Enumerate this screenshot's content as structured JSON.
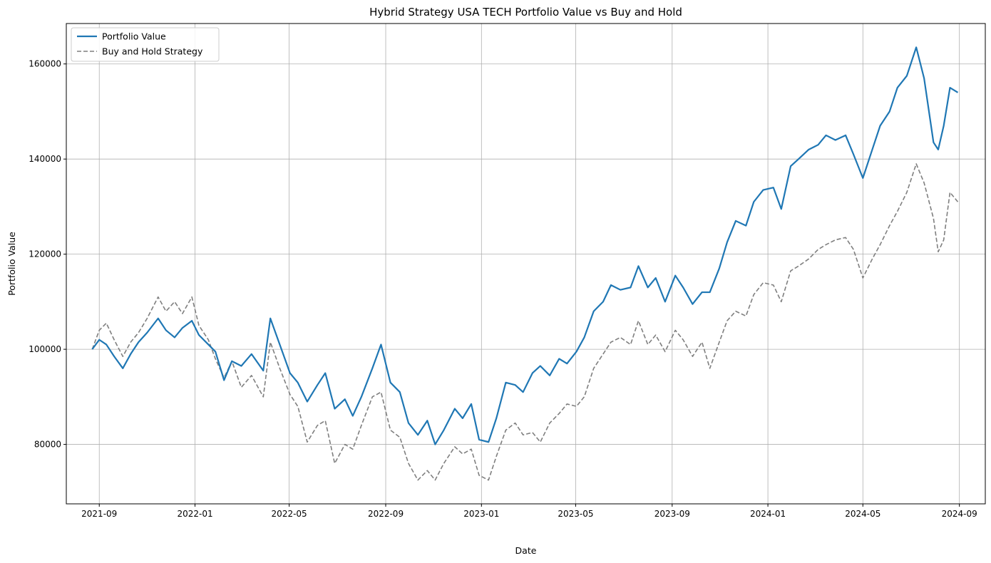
{
  "chart_data": {
    "type": "line",
    "title": "Hybrid Strategy USA TECH Portfolio Value vs Buy and Hold",
    "xlabel": "Date",
    "ylabel": "Portfolio Value",
    "x_ticks": [
      "2021-09",
      "2022-01",
      "2022-05",
      "2022-09",
      "2023-01",
      "2023-05",
      "2023-09",
      "2024-01",
      "2024-05",
      "2024-09"
    ],
    "y_ticks": [
      80000,
      100000,
      120000,
      140000,
      160000
    ],
    "xlim": [
      "2021-07-21",
      "2024-10-04"
    ],
    "ylim": [
      67500,
      168500
    ],
    "grid": true,
    "legend_position": "top-left",
    "x": [
      "2021-08-23",
      "2021-09-01",
      "2021-09-10",
      "2021-09-20",
      "2021-10-01",
      "2021-10-11",
      "2021-10-21",
      "2021-11-01",
      "2021-11-15",
      "2021-11-25",
      "2021-12-06",
      "2021-12-16",
      "2021-12-28",
      "2022-01-06",
      "2022-01-18",
      "2022-01-27",
      "2022-02-07",
      "2022-02-17",
      "2022-03-01",
      "2022-03-14",
      "2022-03-29",
      "2022-04-07",
      "2022-04-19",
      "2022-05-02",
      "2022-05-12",
      "2022-05-24",
      "2022-06-06",
      "2022-06-16",
      "2022-06-28",
      "2022-07-11",
      "2022-07-21",
      "2022-08-01",
      "2022-08-15",
      "2022-08-26",
      "2022-09-07",
      "2022-09-19",
      "2022-09-30",
      "2022-10-12",
      "2022-10-24",
      "2022-11-03",
      "2022-11-14",
      "2022-11-28",
      "2022-12-08",
      "2022-12-19",
      "2022-12-29",
      "2023-01-10",
      "2023-01-20",
      "2023-02-01",
      "2023-02-13",
      "2023-02-23",
      "2023-03-07",
      "2023-03-17",
      "2023-03-29",
      "2023-04-10",
      "2023-04-20",
      "2023-05-02",
      "2023-05-12",
      "2023-05-24",
      "2023-06-05",
      "2023-06-15",
      "2023-06-27",
      "2023-07-10",
      "2023-07-20",
      "2023-08-01",
      "2023-08-11",
      "2023-08-23",
      "2023-09-05",
      "2023-09-15",
      "2023-09-27",
      "2023-10-09",
      "2023-10-19",
      "2023-10-31",
      "2023-11-10",
      "2023-11-21",
      "2023-12-04",
      "2023-12-14",
      "2023-12-26",
      "2024-01-08",
      "2024-01-18",
      "2024-01-30",
      "2024-02-09",
      "2024-02-22",
      "2024-03-05",
      "2024-03-15",
      "2024-03-27",
      "2024-04-09",
      "2024-04-19",
      "2024-05-01",
      "2024-05-13",
      "2024-05-23",
      "2024-06-04",
      "2024-06-14",
      "2024-06-26",
      "2024-07-08",
      "2024-07-18",
      "2024-07-30",
      "2024-08-05",
      "2024-08-12",
      "2024-08-20",
      "2024-08-30"
    ],
    "series": [
      {
        "name": "Portfolio Value",
        "color": "#1f77b4",
        "style": "solid",
        "values": [
          100000,
          102000,
          101000,
          98500,
          96000,
          99000,
          101500,
          103500,
          106500,
          104000,
          102500,
          104500,
          106000,
          103000,
          101000,
          99500,
          93500,
          97500,
          96500,
          99000,
          95500,
          106500,
          101000,
          95000,
          93000,
          89000,
          92500,
          95000,
          87500,
          89500,
          86000,
          90000,
          96000,
          101000,
          93000,
          91000,
          84500,
          82000,
          85000,
          80000,
          83000,
          87500,
          85500,
          88500,
          81000,
          80500,
          85500,
          93000,
          92500,
          91000,
          95000,
          96500,
          94500,
          98000,
          97000,
          99500,
          102500,
          108000,
          110000,
          113500,
          112500,
          113000,
          117500,
          113000,
          115000,
          110000,
          115500,
          113000,
          109500,
          112000,
          112000,
          117000,
          122500,
          127000,
          126000,
          131000,
          133500,
          134000,
          129500,
          138500,
          140000,
          142000,
          143000,
          145000,
          144000,
          145000,
          141000,
          136000,
          142000,
          147000,
          150000,
          155000,
          157500,
          163500,
          157000,
          143500,
          142000,
          147000,
          155000,
          154000
        ]
      },
      {
        "name": "Buy and Hold Strategy",
        "color": "#7f7f7f",
        "style": "dashed",
        "values": [
          100000,
          104000,
          105500,
          102000,
          98500,
          101500,
          103500,
          106500,
          111000,
          108000,
          110000,
          107500,
          111000,
          105000,
          102000,
          98000,
          94000,
          97500,
          92000,
          94500,
          90000,
          101500,
          96000,
          90500,
          88000,
          80500,
          84000,
          85000,
          76000,
          80000,
          79000,
          84000,
          90000,
          91000,
          83000,
          81500,
          76000,
          72500,
          74500,
          72500,
          76000,
          79500,
          78000,
          79000,
          73500,
          72500,
          77500,
          83000,
          84500,
          82000,
          82500,
          80500,
          84500,
          86500,
          88500,
          88000,
          90000,
          96000,
          99000,
          101500,
          102500,
          101000,
          106000,
          101000,
          103000,
          99500,
          104000,
          102000,
          98500,
          101500,
          96000,
          101500,
          106000,
          108000,
          107000,
          111500,
          114000,
          113500,
          110000,
          116500,
          117500,
          119000,
          121000,
          122000,
          123000,
          123500,
          121000,
          115000,
          119000,
          122000,
          126000,
          129000,
          133000,
          139000,
          135000,
          127500,
          120500,
          123000,
          133000,
          131000
        ]
      }
    ]
  }
}
